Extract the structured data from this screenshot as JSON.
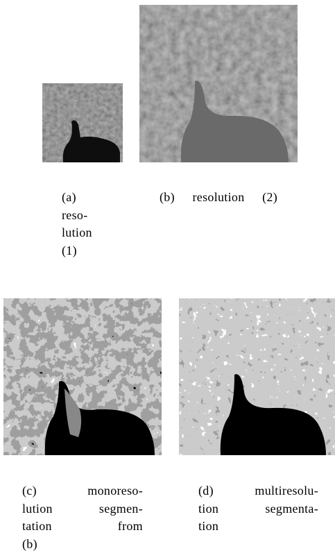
{
  "figures": [
    {
      "caption_lines": [
        "(a)",
        "reso-",
        "lution",
        "(1)"
      ]
    },
    {
      "caption_lines": [
        "(b) resolution (2)"
      ]
    },
    {
      "caption_lines": [
        "(c) monoreso-",
        "lution segmen-",
        "tation from",
        "(b)"
      ]
    },
    {
      "caption_lines": [
        "(d) multiresolu-",
        "tion segmenta-",
        "tion"
      ]
    }
  ]
}
